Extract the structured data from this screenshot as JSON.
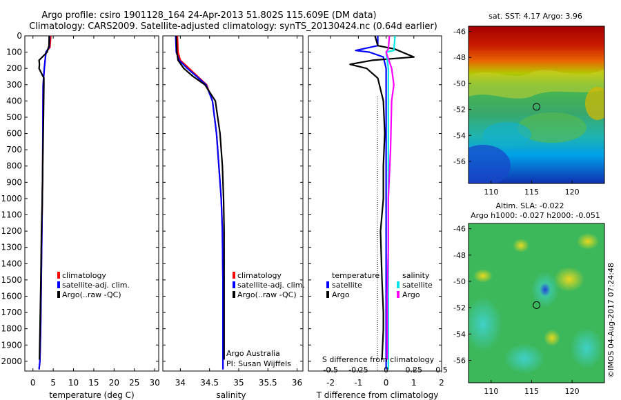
{
  "header": {
    "line1": "Argo profile: csiro 1901128_164 24-Apr-2013 51.802S 115.609E (DM data)",
    "line2": "Climatology: CARS2009. Satellite-adjusted climatology: synTS_20130424.nc (0.64d earlier)"
  },
  "credit": "©IMOS 04-Aug-2017 07:24:48",
  "colors": {
    "climatology": "#ff0000",
    "satellite": "#0000ff",
    "argo": "#000000",
    "satellite_salt": "#00e5e5",
    "argo_salt": "#ff00ff"
  },
  "legend": {
    "climatology": "climatology",
    "satellite_adj": "satellite-adj. clim.",
    "argo_raw": "Argo(..raw -QC)",
    "temperature_title": "temperature",
    "salinity_title": "salinity",
    "satellite": "satellite",
    "argo": "Argo"
  },
  "annotation": {
    "line1": "Argo Australia",
    "line2": "PI: Susan Wijffels"
  },
  "maps": {
    "sst_title": "sat. SST: 4.17 Argo: 3.96",
    "sla_title1": "Altim. SLA: -0.022",
    "sla_title2": "Argo h1000: -0.027 h2000: -0.051",
    "lat_ticks": [
      "-46",
      "-48",
      "-50",
      "-52",
      "-54",
      "-56"
    ],
    "lon_ticks": [
      "110",
      "115",
      "120"
    ],
    "float_lon": 115.609,
    "float_lat": -51.802
  },
  "chart_data": [
    {
      "type": "line",
      "title": "",
      "xlabel": "temperature (deg C)",
      "ylabel": "",
      "xlim": [
        -2,
        31
      ],
      "ylim": [
        2060,
        0
      ],
      "y_reversed": true,
      "xticks": [
        "0",
        "5",
        "10",
        "15",
        "20",
        "25",
        "30"
      ],
      "yticks": [
        "0",
        "100",
        "200",
        "300",
        "400",
        "500",
        "600",
        "700",
        "800",
        "900",
        "1000",
        "1100",
        "1200",
        "1300",
        "1400",
        "1500",
        "1600",
        "1700",
        "1800",
        "1900",
        "2000"
      ],
      "series": [
        {
          "name": "climatology",
          "x": [
            4.4,
            4.2,
            3.2,
            2.8,
            2.5,
            2.45,
            2.4,
            2.3,
            2.2,
            2.05,
            1.9,
            1.7,
            1.5
          ],
          "y": [
            0,
            70,
            100,
            200,
            300,
            500,
            800,
            1000,
            1200,
            1500,
            1800,
            2000,
            2050
          ]
        },
        {
          "name": "satellite-adj. clim.",
          "x": [
            4.1,
            4.0,
            3.2,
            2.8,
            2.5,
            2.45,
            2.4,
            2.3,
            2.2,
            2.05,
            1.9,
            1.7,
            1.5
          ],
          "y": [
            0,
            70,
            100,
            200,
            300,
            500,
            800,
            1000,
            1200,
            1500,
            1800,
            2000,
            2050
          ]
        },
        {
          "name": "Argo(..raw -QC)",
          "x": [
            4.0,
            3.95,
            3.5,
            1.5,
            1.6,
            1.5,
            2.7,
            2.7,
            2.6,
            2.4,
            2.3,
            2.1,
            1.95,
            1.75,
            1.6
          ],
          "y": [
            0,
            60,
            100,
            150,
            175,
            200,
            260,
            300,
            500,
            800,
            1000,
            1200,
            1500,
            1800,
            1990
          ]
        }
      ]
    },
    {
      "type": "line",
      "title": "",
      "xlabel": "salinity",
      "ylabel": "",
      "xlim": [
        33.7,
        36.1
      ],
      "ylim": [
        2060,
        0
      ],
      "y_reversed": true,
      "xticks": [
        "34",
        "34.5",
        "35",
        "35.5",
        "36"
      ],
      "series": [
        {
          "name": "climatology",
          "x": [
            33.95,
            33.96,
            34.0,
            34.15,
            34.3,
            34.45,
            34.55,
            34.62,
            34.66,
            34.7,
            34.72,
            34.73,
            34.73,
            34.73
          ],
          "y": [
            0,
            100,
            150,
            200,
            250,
            300,
            400,
            600,
            800,
            1000,
            1200,
            1500,
            1800,
            2050
          ]
        },
        {
          "name": "satellite-adj. clim.",
          "x": [
            33.92,
            33.93,
            33.98,
            34.12,
            34.28,
            34.44,
            34.55,
            34.62,
            34.66,
            34.7,
            34.72,
            34.73,
            34.73,
            34.73
          ],
          "y": [
            0,
            100,
            150,
            200,
            250,
            300,
            400,
            600,
            800,
            1000,
            1200,
            1500,
            1800,
            2050
          ]
        },
        {
          "name": "Argo(..raw -QC)",
          "x": [
            33.93,
            33.94,
            33.96,
            34.06,
            34.22,
            34.42,
            34.6,
            34.68,
            34.72,
            34.74,
            34.75,
            34.75,
            34.75,
            34.75
          ],
          "y": [
            0,
            100,
            150,
            200,
            250,
            300,
            400,
            600,
            800,
            1000,
            1200,
            1500,
            1800,
            1990
          ]
        }
      ]
    },
    {
      "type": "line",
      "title": "",
      "xlabel": "T difference from climatology",
      "xlabel_top": "S difference from climatology",
      "xlim": [
        -2.8,
        2.0
      ],
      "ylim": [
        2060,
        0
      ],
      "y_reversed": true,
      "xticks": [
        "-2",
        "-1",
        "0",
        "1",
        "2"
      ],
      "xticks_top": [
        "-0.5",
        "-0.25",
        "0",
        "0.25",
        "0.5"
      ],
      "series": [
        {
          "name": "temperature satellite",
          "group": "temperature",
          "x": [
            -0.3,
            -0.3,
            -1.1,
            -0.6,
            -0.1,
            0.0,
            0.0,
            0.0,
            0.0,
            0.0,
            0.0,
            0.0
          ],
          "y": [
            0,
            60,
            90,
            100,
            130,
            200,
            500,
            800,
            1000,
            1500,
            1800,
            2050
          ]
        },
        {
          "name": "temperature Argo",
          "group": "temperature",
          "x": [
            -0.4,
            -0.3,
            0.3,
            1.0,
            -0.5,
            -1.3,
            -0.7,
            -0.3,
            -0.1,
            -0.05,
            -0.1,
            -0.1,
            -0.2,
            -0.15,
            -0.1,
            -0.1,
            -0.15
          ],
          "y": [
            0,
            60,
            80,
            130,
            150,
            175,
            200,
            260,
            400,
            600,
            800,
            1000,
            1200,
            1500,
            1700,
            1800,
            1990
          ]
        },
        {
          "name": "salinity satellite",
          "group": "salinity",
          "x": [
            0.08,
            0.07,
            0.0,
            0.02,
            0.02,
            0.02,
            0.02,
            0.02,
            0.02
          ],
          "y": [
            0,
            90,
            100,
            200,
            400,
            800,
            1200,
            1600,
            2050
          ]
        },
        {
          "name": "salinity Argo",
          "group": "salinity",
          "x": [
            0.03,
            0.02,
            0.0,
            0.05,
            0.06,
            0.07,
            0.05,
            0.04,
            0.02,
            0.02,
            0.01,
            0.01
          ],
          "y": [
            0,
            80,
            100,
            200,
            250,
            300,
            400,
            700,
            1000,
            1300,
            1600,
            1990
          ]
        }
      ]
    }
  ]
}
